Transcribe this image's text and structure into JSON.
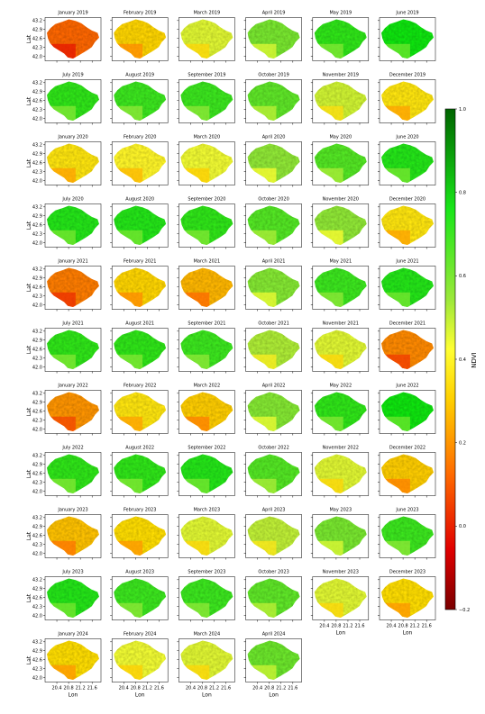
{
  "chart_data": {
    "type": "heatmap",
    "title": "",
    "panels": [
      {
        "title": "January 2019",
        "ndvi_mean": 0.12
      },
      {
        "title": "February 2019",
        "ndvi_mean": 0.32
      },
      {
        "title": "March 2019",
        "ndvi_mean": 0.46
      },
      {
        "title": "April 2019",
        "ndvi_mean": 0.6
      },
      {
        "title": "May 2019",
        "ndvi_mean": 0.72
      },
      {
        "title": "June 2019",
        "ndvi_mean": 0.76
      },
      {
        "title": "July 2019",
        "ndvi_mean": 0.72
      },
      {
        "title": "August 2019",
        "ndvi_mean": 0.7
      },
      {
        "title": "September 2019",
        "ndvi_mean": 0.7
      },
      {
        "title": "October 2019",
        "ndvi_mean": 0.64
      },
      {
        "title": "November 2019",
        "ndvi_mean": 0.48
      },
      {
        "title": "December 2019",
        "ndvi_mean": 0.36
      },
      {
        "title": "January 2020",
        "ndvi_mean": 0.36
      },
      {
        "title": "February 2020",
        "ndvi_mean": 0.4
      },
      {
        "title": "March 2020",
        "ndvi_mean": 0.44
      },
      {
        "title": "April 2020",
        "ndvi_mean": 0.56
      },
      {
        "title": "May 2020",
        "ndvi_mean": 0.66
      },
      {
        "title": "June 2020",
        "ndvi_mean": 0.74
      },
      {
        "title": "July 2020",
        "ndvi_mean": 0.74
      },
      {
        "title": "August 2020",
        "ndvi_mean": 0.74
      },
      {
        "title": "September 2020",
        "ndvi_mean": 0.72
      },
      {
        "title": "October 2020",
        "ndvi_mean": 0.66
      },
      {
        "title": "November 2020",
        "ndvi_mean": 0.56
      },
      {
        "title": "December 2020",
        "ndvi_mean": 0.36
      },
      {
        "title": "January 2021",
        "ndvi_mean": 0.16
      },
      {
        "title": "February 2021",
        "ndvi_mean": 0.32
      },
      {
        "title": "March 2021",
        "ndvi_mean": 0.26
      },
      {
        "title": "April 2021",
        "ndvi_mean": 0.58
      },
      {
        "title": "May 2021",
        "ndvi_mean": 0.7
      },
      {
        "title": "June 2021",
        "ndvi_mean": 0.74
      },
      {
        "title": "July 2021",
        "ndvi_mean": 0.72
      },
      {
        "title": "August 2021",
        "ndvi_mean": 0.72
      },
      {
        "title": "September 2021",
        "ndvi_mean": 0.7
      },
      {
        "title": "October 2021",
        "ndvi_mean": 0.52
      },
      {
        "title": "November 2021",
        "ndvi_mean": 0.46
      },
      {
        "title": "December 2021",
        "ndvi_mean": 0.18
      },
      {
        "title": "January 2022",
        "ndvi_mean": 0.2
      },
      {
        "title": "February 2022",
        "ndvi_mean": 0.36
      },
      {
        "title": "March 2022",
        "ndvi_mean": 0.3
      },
      {
        "title": "April 2022",
        "ndvi_mean": 0.58
      },
      {
        "title": "May 2022",
        "ndvi_mean": 0.72
      },
      {
        "title": "June 2022",
        "ndvi_mean": 0.76
      },
      {
        "title": "July 2022",
        "ndvi_mean": 0.72
      },
      {
        "title": "August 2022",
        "ndvi_mean": 0.72
      },
      {
        "title": "September 2022",
        "ndvi_mean": 0.74
      },
      {
        "title": "October 2022",
        "ndvi_mean": 0.66
      },
      {
        "title": "November 2022",
        "ndvi_mean": 0.46
      },
      {
        "title": "December 2022",
        "ndvi_mean": 0.3
      },
      {
        "title": "January 2023",
        "ndvi_mean": 0.28
      },
      {
        "title": "February 2023",
        "ndvi_mean": 0.34
      },
      {
        "title": "March 2023",
        "ndvi_mean": 0.46
      },
      {
        "title": "April 2023",
        "ndvi_mean": 0.5
      },
      {
        "title": "May 2023",
        "ndvi_mean": 0.6
      },
      {
        "title": "June 2023",
        "ndvi_mean": 0.7
      },
      {
        "title": "July 2023",
        "ndvi_mean": 0.74
      },
      {
        "title": "August 2023",
        "ndvi_mean": 0.7
      },
      {
        "title": "September 2023",
        "ndvi_mean": 0.7
      },
      {
        "title": "October 2023",
        "ndvi_mean": 0.64
      },
      {
        "title": "November 2023",
        "ndvi_mean": 0.46
      },
      {
        "title": "December 2023",
        "ndvi_mean": 0.34
      },
      {
        "title": "January 2024",
        "ndvi_mean": 0.34
      },
      {
        "title": "February 2024",
        "ndvi_mean": 0.44
      },
      {
        "title": "March 2024",
        "ndvi_mean": 0.46
      },
      {
        "title": "April 2024",
        "ndvi_mean": 0.62
      }
    ],
    "grid": {
      "rows": 11,
      "cols": 6
    },
    "xlabel": "Lon",
    "ylabel": "Lat",
    "x_ticks": [
      "20.4",
      "20.8",
      "21.2",
      "21.6"
    ],
    "y_ticks": [
      "43.2",
      "42.9",
      "42.6",
      "42.3",
      "42.0"
    ],
    "xlim": [
      20.0,
      21.9
    ],
    "ylim": [
      41.85,
      43.3
    ],
    "colorbar": {
      "label": "NDVI",
      "range": [
        -0.2,
        1.0
      ],
      "ticks": [
        "1.0",
        "0.8",
        "0.6",
        "0.4",
        "0.2",
        "0.0",
        "−0.2"
      ],
      "colormap": [
        "#7a0000",
        "#e00000",
        "#ff6a00",
        "#ffd000",
        "#ffff33",
        "#9be83a",
        "#19e619",
        "#006400"
      ]
    },
    "grid_lines": false
  }
}
